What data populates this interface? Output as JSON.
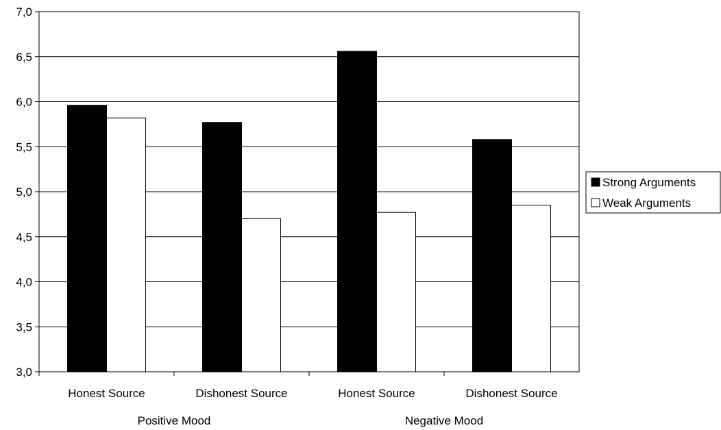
{
  "chart_data": {
    "type": "bar",
    "title": "",
    "xlabel": "",
    "ylabel": "",
    "ylim": [
      3.0,
      7.0
    ],
    "y_ticks": [
      "3,0",
      "3,5",
      "4,0",
      "4,5",
      "5,0",
      "5,5",
      "6,0",
      "6,5",
      "7,0"
    ],
    "y_tick_values": [
      3.0,
      3.5,
      4.0,
      4.5,
      5.0,
      5.5,
      6.0,
      6.5,
      7.0
    ],
    "grid": true,
    "legend_position": "right",
    "categories": [
      "Honest Source",
      "Dishonest Source",
      "Honest Source",
      "Dishonest Source"
    ],
    "groups": [
      {
        "label": "Positive Mood",
        "span": [
          0,
          1
        ]
      },
      {
        "label": "Negative Mood",
        "span": [
          2,
          3
        ]
      }
    ],
    "series": [
      {
        "name": "Strong Arguments",
        "color": "#000000",
        "values": [
          5.96,
          5.77,
          6.56,
          5.58
        ]
      },
      {
        "name": "Weak Arguments",
        "color": "#ffffff",
        "values": [
          5.82,
          4.7,
          4.77,
          4.85
        ]
      }
    ]
  }
}
